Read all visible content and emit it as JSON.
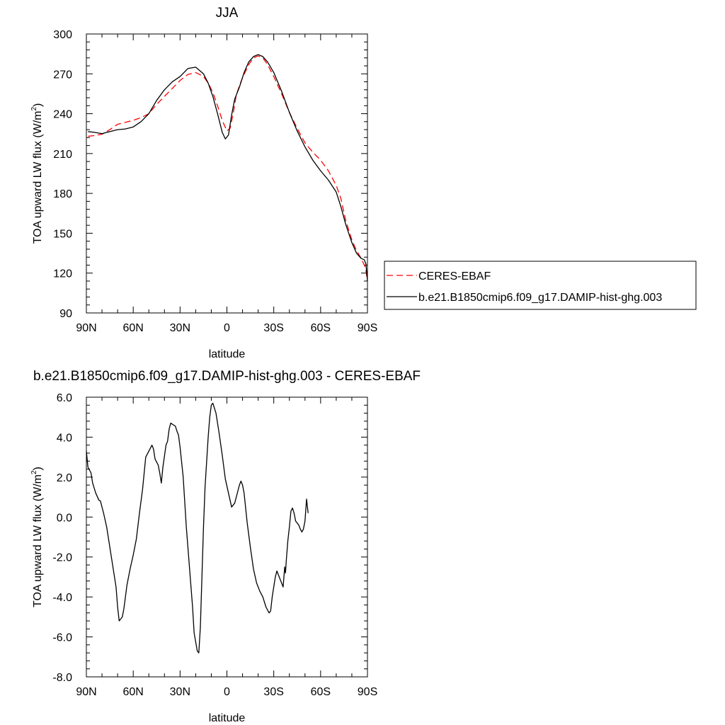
{
  "chart_data": [
    {
      "type": "line",
      "title": "JJA",
      "xlabel": "latitude",
      "ylabel": "TOA upward LW flux (W/m",
      "ylabel_sup": "2",
      "ylabel_close": ")",
      "x_axis": "latitude, 90 (N) to -90 (S)",
      "xlim": [
        90,
        -90
      ],
      "ylim": [
        90,
        300
      ],
      "x_ticks": [
        {
          "value": 90,
          "label": "90N"
        },
        {
          "value": 60,
          "label": "60N"
        },
        {
          "value": 30,
          "label": "30N"
        },
        {
          "value": 0,
          "label": "0"
        },
        {
          "value": -30,
          "label": "30S"
        },
        {
          "value": -60,
          "label": "60S"
        },
        {
          "value": -90,
          "label": "90S"
        }
      ],
      "y_ticks": [
        {
          "value": 90,
          "label": "90"
        },
        {
          "value": 120,
          "label": "120"
        },
        {
          "value": 150,
          "label": "150"
        },
        {
          "value": 180,
          "label": "180"
        },
        {
          "value": 210,
          "label": "210"
        },
        {
          "value": 240,
          "label": "240"
        },
        {
          "value": 270,
          "label": "270"
        },
        {
          "value": 300,
          "label": "300"
        }
      ],
      "legend_placement": "right, outside plot, lower half",
      "series": [
        {
          "name": "CERES-EBAF",
          "color": "#ff0000",
          "dash": "dashed",
          "points": [
            [
              89,
              223
            ],
            [
              85,
              223.5
            ],
            [
              80,
              224.5
            ],
            [
              75,
              228
            ],
            [
              70,
              232
            ],
            [
              65,
              233.5
            ],
            [
              60,
              235
            ],
            [
              55,
              237
            ],
            [
              50,
              240
            ],
            [
              45,
              247
            ],
            [
              40,
              253
            ],
            [
              35,
              259
            ],
            [
              30,
              265
            ],
            [
              25,
              269.5
            ],
            [
              20,
              271
            ],
            [
              15,
              268
            ],
            [
              12,
              263
            ],
            [
              9,
              256
            ],
            [
              6,
              246
            ],
            [
              3,
              235
            ],
            [
              0,
              227
            ],
            [
              -2,
              229
            ],
            [
              -4,
              240
            ],
            [
              -6,
              254
            ],
            [
              -8,
              261
            ],
            [
              -10,
              267
            ],
            [
              -14,
              277
            ],
            [
              -17,
              282
            ],
            [
              -20,
              283.5
            ],
            [
              -23,
              282
            ],
            [
              -26,
              277
            ],
            [
              -30,
              268
            ],
            [
              -35,
              255
            ],
            [
              -40,
              241
            ],
            [
              -45,
              229
            ],
            [
              -50,
              218
            ],
            [
              -55,
              211
            ],
            [
              -60,
              205
            ],
            [
              -65,
              197
            ],
            [
              -70,
              186
            ],
            [
              -73,
              176
            ],
            [
              -76,
              160
            ],
            [
              -80,
              145
            ],
            [
              -83,
              137
            ],
            [
              -86,
              131
            ],
            [
              -88,
              126
            ],
            [
              -89,
              122
            ],
            [
              -90,
              114
            ]
          ]
        },
        {
          "name": "b.e21.B1850cmip6.f09_g17.DAMIP-hist-ghg.003",
          "color": "#000000",
          "dash": "solid",
          "points": [
            [
              89,
              226.5
            ],
            [
              85,
              226
            ],
            [
              80,
              225
            ],
            [
              75,
              226.5
            ],
            [
              70,
              228
            ],
            [
              65,
              228.5
            ],
            [
              60,
              230
            ],
            [
              55,
              234
            ],
            [
              50,
              240
            ],
            [
              45,
              250
            ],
            [
              40,
              258
            ],
            [
              35,
              264
            ],
            [
              30,
              268
            ],
            [
              25,
              274
            ],
            [
              20,
              275
            ],
            [
              15,
              270
            ],
            [
              12,
              263
            ],
            [
              9,
              253
            ],
            [
              6,
              240
            ],
            [
              3,
              226
            ],
            [
              1,
              221
            ],
            [
              -1,
              224
            ],
            [
              -3,
              239
            ],
            [
              -5,
              251
            ],
            [
              -8,
              260
            ],
            [
              -11,
              271
            ],
            [
              -14,
              279
            ],
            [
              -17,
              283
            ],
            [
              -20,
              284.5
            ],
            [
              -23,
              283
            ],
            [
              -26,
              279
            ],
            [
              -30,
              271
            ],
            [
              -35,
              257
            ],
            [
              -40,
              241
            ],
            [
              -45,
              227
            ],
            [
              -50,
              215
            ],
            [
              -55,
              205
            ],
            [
              -60,
              197
            ],
            [
              -65,
              190
            ],
            [
              -70,
              181
            ],
            [
              -73,
              170
            ],
            [
              -76,
              157
            ],
            [
              -80,
              143
            ],
            [
              -83,
              135
            ],
            [
              -86,
              131
            ],
            [
              -88,
              130
            ],
            [
              -89,
              127
            ],
            [
              -90,
              114
            ]
          ]
        }
      ]
    },
    {
      "type": "line",
      "title": "b.e21.B1850cmip6.f09_g17.DAMIP-hist-ghg.003 - CERES-EBAF",
      "xlabel": "latitude",
      "ylabel": "TOA upward LW flux (W/m",
      "ylabel_sup": "2",
      "ylabel_close": ")",
      "x_axis": "latitude, 90 (N) to -90 (S)",
      "xlim": [
        90,
        -90
      ],
      "ylim": [
        -8,
        6
      ],
      "x_ticks": [
        {
          "value": 90,
          "label": "90N"
        },
        {
          "value": 60,
          "label": "60N"
        },
        {
          "value": 30,
          "label": "30N"
        },
        {
          "value": 0,
          "label": "0"
        },
        {
          "value": -30,
          "label": "30S"
        },
        {
          "value": -60,
          "label": "60S"
        },
        {
          "value": -90,
          "label": "90S"
        }
      ],
      "y_ticks": [
        {
          "value": -8,
          "label": "-8.0"
        },
        {
          "value": -6,
          "label": "-6.0"
        },
        {
          "value": -4,
          "label": "-4.0"
        },
        {
          "value": -2,
          "label": "-2.0"
        },
        {
          "value": 0,
          "label": "0.0"
        },
        {
          "value": 2,
          "label": "2.0"
        },
        {
          "value": 4,
          "label": "4.0"
        },
        {
          "value": 6,
          "label": "6.0"
        }
      ],
      "series": [
        {
          "name": "",
          "color": "#000000",
          "dash": "solid",
          "points": [
            [
              90,
              3.3
            ],
            [
              89,
              2.5
            ],
            [
              87,
              2.2
            ],
            [
              86,
              1.7
            ],
            [
              84,
              1.2
            ],
            [
              82,
              0.85
            ],
            [
              81,
              0.8
            ],
            [
              79,
              0.2
            ],
            [
              77,
              -0.5
            ],
            [
              75,
              -1.5
            ],
            [
              73,
              -2.5
            ],
            [
              71,
              -3.5
            ],
            [
              70,
              -4.5
            ],
            [
              69,
              -5.2
            ],
            [
              67,
              -5.0
            ],
            [
              66,
              -4.6
            ],
            [
              64,
              -3.4
            ],
            [
              62,
              -2.6
            ],
            [
              60,
              -1.9
            ],
            [
              58,
              -1.1
            ],
            [
              56,
              0.2
            ],
            [
              54,
              1.4
            ],
            [
              52,
              3.0
            ],
            [
              50,
              3.3
            ],
            [
              48,
              3.6
            ],
            [
              47,
              3.4
            ],
            [
              46,
              2.9
            ],
            [
              44,
              2.6
            ],
            [
              43,
              2.2
            ],
            [
              42,
              1.7
            ],
            [
              41,
              2.5
            ],
            [
              39,
              3.6
            ],
            [
              38,
              3.8
            ],
            [
              37,
              4.4
            ],
            [
              36,
              4.7
            ],
            [
              35,
              4.65
            ],
            [
              34,
              4.6
            ],
            [
              33,
              4.55
            ],
            [
              32,
              4.3
            ],
            [
              31,
              4.1
            ],
            [
              30,
              3.5
            ],
            [
              28,
              2.0
            ],
            [
              26,
              -0.5
            ],
            [
              24,
              -2.5
            ],
            [
              22,
              -4.5
            ],
            [
              21,
              -5.8
            ],
            [
              19,
              -6.7
            ],
            [
              18,
              -6.8
            ],
            [
              17,
              -5.5
            ],
            [
              16,
              -3.0
            ],
            [
              15,
              -0.5
            ],
            [
              14,
              1.5
            ],
            [
              12,
              4.0
            ],
            [
              11,
              5.0
            ],
            [
              10,
              5.6
            ],
            [
              9,
              5.7
            ],
            [
              7,
              5.2
            ],
            [
              5,
              4.2
            ],
            [
              3,
              3.1
            ],
            [
              1,
              1.9
            ],
            [
              -1,
              1.2
            ],
            [
              -3,
              0.5
            ],
            [
              -5,
              0.7
            ],
            [
              -6,
              1.0
            ],
            [
              -7,
              1.3
            ],
            [
              -8,
              1.6
            ],
            [
              -9,
              1.8
            ],
            [
              -10,
              1.6
            ],
            [
              -11,
              1.2
            ],
            [
              -13,
              -0.3
            ],
            [
              -15,
              -1.5
            ],
            [
              -17,
              -2.6
            ],
            [
              -19,
              -3.3
            ],
            [
              -21,
              -3.7
            ],
            [
              -23,
              -4.0
            ],
            [
              -25,
              -4.5
            ],
            [
              -27,
              -4.8
            ],
            [
              -28,
              -4.7
            ],
            [
              -29,
              -4.0
            ],
            [
              -31,
              -3.0
            ],
            [
              -32,
              -2.7
            ],
            [
              -33,
              -2.9
            ],
            [
              -34,
              -3.1
            ],
            [
              -35,
              -3.3
            ],
            [
              -36,
              -3.5
            ],
            [
              -37,
              -2.5
            ],
            [
              -37.5,
              -2.8
            ],
            [
              -38,
              -2.2
            ],
            [
              -39,
              -1.2
            ],
            [
              -40,
              -0.5
            ],
            [
              -41,
              0.3
            ],
            [
              -42,
              0.45
            ],
            [
              -43,
              0.2
            ],
            [
              -44,
              -0.2
            ],
            [
              -45,
              -0.3
            ],
            [
              -46,
              -0.4
            ],
            [
              -47,
              -0.6
            ],
            [
              -48,
              -0.75
            ],
            [
              -49,
              -0.6
            ],
            [
              -50,
              -0.2
            ],
            [
              -51,
              0.9
            ],
            [
              -52,
              0.2
            ]
          ]
        }
      ]
    }
  ]
}
